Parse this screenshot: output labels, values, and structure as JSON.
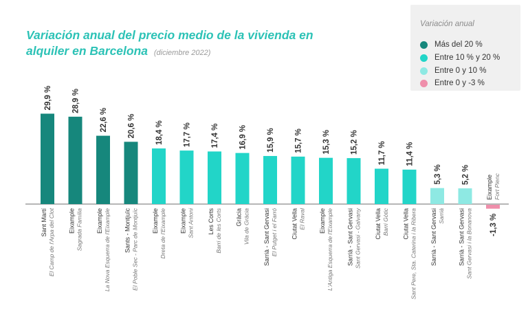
{
  "header": {
    "title": "Variación anual del precio medio de la vivienda en alquiler en Barcelona",
    "subtitle": "(diciembre 2022)"
  },
  "legend": {
    "title": "Variación anual",
    "items": [
      {
        "label": "Más del 20 %",
        "color": "#16877c"
      },
      {
        "label": "Entre 10 % y 20 %",
        "color": "#22d5c8"
      },
      {
        "label": "Entre 0 y 10 %",
        "color": "#8ee9e3"
      },
      {
        "label": "Entre 0 y -3 %",
        "color": "#ef8fab"
      }
    ]
  },
  "chart_data": {
    "type": "bar",
    "title": "Variación anual del precio medio de la vivienda en alquiler en Barcelona",
    "subtitle": "(diciembre 2022)",
    "categories": [
      {
        "district": "Sant Martí",
        "neighborhood": "El Camp de l'Arpa del Clot"
      },
      {
        "district": "Eixample",
        "neighborhood": "Sagrada Família"
      },
      {
        "district": "Eixample",
        "neighborhood": "La Nova Esquerra de l'Eixample"
      },
      {
        "district": "Sants - Montjuïc",
        "neighborhood": "El Poble Sec - Parc de Montjuïc"
      },
      {
        "district": "Eixample",
        "neighborhood": "Dreta de l'Eixample"
      },
      {
        "district": "Eixample",
        "neighborhood": "Sant Antoni"
      },
      {
        "district": "Les Corts",
        "neighborhood": "Barri de les Corts"
      },
      {
        "district": "Gràcia",
        "neighborhood": "Vila de Gràcia"
      },
      {
        "district": "Sarrià - Sant Gervasi",
        "neighborhood": "El Putget i el Farró"
      },
      {
        "district": "Ciutat Vella",
        "neighborhood": "El Raval"
      },
      {
        "district": "Eixample",
        "neighborhood": "L'Antiga Esquerra de l'Eixample"
      },
      {
        "district": "Sarrià - Sant Gervasi",
        "neighborhood": "Sant Gervasi - Galvany"
      },
      {
        "district": "Ciutat Vella",
        "neighborhood": "Barri Gòtic"
      },
      {
        "district": "Ciutat Vella",
        "neighborhood": "Sant Pere, Sta. Caterina i la Ribera"
      },
      {
        "district": "Sarrià - Sant Gervasi",
        "neighborhood": "Sarrià"
      },
      {
        "district": "Sarrià - Sant Gervasi",
        "neighborhood": "Sant Gervasi i la Bonanova"
      },
      {
        "district": "Eixample",
        "neighborhood": "Fort Pienc"
      }
    ],
    "values": [
      29.9,
      28.9,
      22.6,
      20.6,
      18.4,
      17.7,
      17.4,
      16.9,
      15.9,
      15.7,
      15.3,
      15.2,
      11.7,
      11.4,
      5.3,
      5.2,
      -1.3
    ],
    "value_labels": [
      "29,9 %",
      "28,9 %",
      "22,6 %",
      "20,6 %",
      "18,4 %",
      "17,7 %",
      "17,4 %",
      "16,9 %",
      "15,9 %",
      "15,7 %",
      "15,3 %",
      "15,2 %",
      "11,7 %",
      "11,4 %",
      "5,3 %",
      "5,2 %",
      "-1,3 %"
    ],
    "ylim": [
      -1.3,
      29.9
    ],
    "grid": false,
    "legend_position": "top-right",
    "colors": {
      "above_20": "#16877c",
      "from_10_to_20": "#22d5c8",
      "from_0_to_10": "#8ee9e3",
      "from_0_to_minus_3": "#ef8fab"
    }
  }
}
